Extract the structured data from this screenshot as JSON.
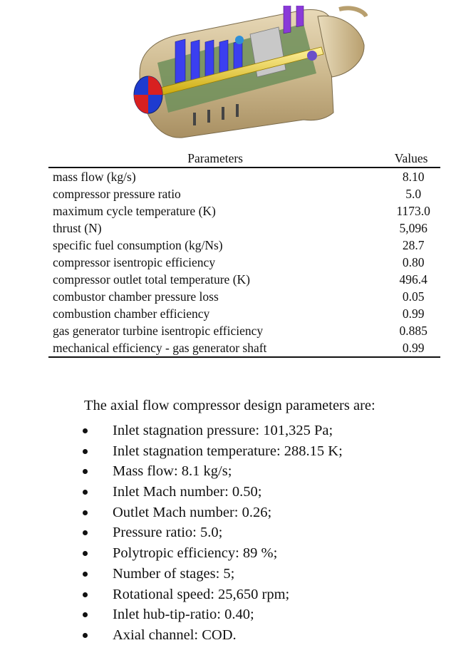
{
  "table": {
    "headers": {
      "param": "Parameters",
      "value": "Values"
    },
    "rows": [
      {
        "param": "mass flow (kg/s)",
        "value": "8.10"
      },
      {
        "param": "compressor pressure ratio",
        "value": "5.0"
      },
      {
        "param": "maximum cycle temperature (K)",
        "value": "1173.0"
      },
      {
        "param": "thrust (N)",
        "value": "5,096"
      },
      {
        "param": "specific fuel consumption (kg/Ns)",
        "value": "28.7"
      },
      {
        "param": "compressor isentropic efficiency",
        "value": "0.80"
      },
      {
        "param": "compressor outlet total temperature (K)",
        "value": "496.4"
      },
      {
        "param": "combustor chamber pressure loss",
        "value": "0.05"
      },
      {
        "param": "combustion chamber efficiency",
        "value": "0.99"
      },
      {
        "param": "gas generator turbine isentropic efficiency",
        "value": "0.885"
      },
      {
        "param": "mechanical efficiency - gas generator shaft",
        "value": "0.99"
      }
    ]
  },
  "design": {
    "intro": "The axial flow compressor design parameters are:",
    "items": [
      "Inlet stagnation pressure: 101,325 Pa;",
      "Inlet stagnation temperature: 288.15 K;",
      "Mass flow: 8.1 kg/s;",
      "Inlet Mach number: 0.50;",
      "Outlet Mach number: 0.26;",
      "Pressure ratio: 5.0;",
      "Polytropic efficiency: 89 %;",
      "Number of stages: 5;",
      "Rotational speed: 25,650 rpm;",
      "Inlet hub-tip-ratio: 0.40;",
      "Axial channel: COD."
    ]
  }
}
